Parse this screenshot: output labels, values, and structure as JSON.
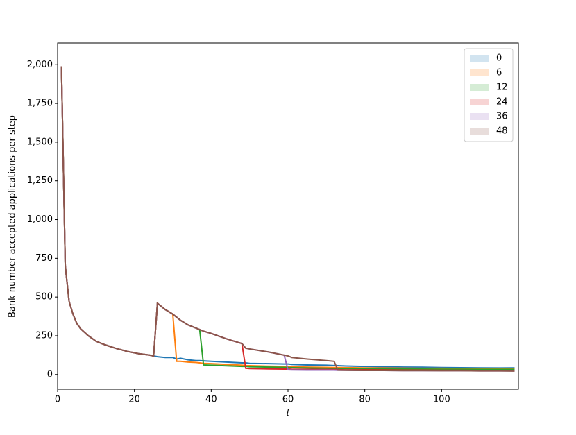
{
  "chart_data": {
    "type": "line",
    "x_label": "t",
    "y_label": "Bank number accepted applications per step",
    "x": [
      1,
      2,
      3,
      4,
      5,
      6,
      8,
      10,
      12,
      15,
      18,
      21,
      24,
      25,
      26,
      28,
      30,
      31,
      32,
      34,
      36,
      37,
      38,
      40,
      44,
      48,
      49,
      50,
      55,
      59,
      60,
      61,
      65,
      70,
      72,
      73,
      75,
      80,
      85,
      90,
      95,
      100,
      105,
      110,
      115,
      119
    ],
    "series": [
      {
        "name": "0",
        "color": "#1f77b4",
        "values": [
          1990,
          700,
          470,
          390,
          330,
          295,
          250,
          215,
          195,
          170,
          150,
          135,
          125,
          120,
          115,
          110,
          110,
          100,
          105,
          95,
          90,
          90,
          88,
          85,
          80,
          75,
          75,
          72,
          70,
          68,
          68,
          65,
          62,
          60,
          58,
          57,
          55,
          52,
          50,
          48,
          47,
          45,
          44,
          43,
          42,
          43
        ]
      },
      {
        "name": "6",
        "color": "#ff7f0e",
        "values": [
          1990,
          700,
          470,
          390,
          330,
          295,
          250,
          215,
          195,
          170,
          150,
          135,
          125,
          120,
          460,
          420,
          390,
          85,
          85,
          80,
          78,
          75,
          72,
          70,
          65,
          60,
          58,
          57,
          54,
          52,
          52,
          50,
          48,
          46,
          45,
          45,
          44,
          43,
          42,
          41,
          40,
          40,
          39,
          38,
          38,
          38
        ]
      },
      {
        "name": "12",
        "color": "#2ca02c",
        "values": [
          1990,
          700,
          470,
          390,
          330,
          295,
          250,
          215,
          195,
          170,
          150,
          135,
          125,
          120,
          460,
          420,
          390,
          370,
          350,
          320,
          300,
          290,
          62,
          60,
          56,
          52,
          52,
          50,
          48,
          46,
          45,
          44,
          42,
          40,
          39,
          39,
          38,
          37,
          36,
          35,
          35,
          34,
          34,
          33,
          33,
          33
        ]
      },
      {
        "name": "24",
        "color": "#d62728",
        "values": [
          1990,
          700,
          470,
          390,
          330,
          295,
          250,
          215,
          195,
          170,
          150,
          135,
          125,
          120,
          460,
          420,
          390,
          370,
          350,
          320,
          300,
          290,
          280,
          265,
          230,
          200,
          40,
          38,
          36,
          35,
          35,
          34,
          33,
          32,
          32,
          31,
          30,
          30,
          29,
          28,
          28,
          27,
          27,
          26,
          26,
          26
        ]
      },
      {
        "name": "36",
        "color": "#9467bd",
        "values": [
          1990,
          700,
          470,
          390,
          330,
          295,
          250,
          215,
          195,
          170,
          150,
          135,
          125,
          120,
          460,
          420,
          390,
          370,
          350,
          320,
          300,
          290,
          280,
          265,
          230,
          200,
          170,
          165,
          145,
          125,
          30,
          29,
          28,
          28,
          28,
          27,
          27,
          26,
          26,
          25,
          25,
          24,
          24,
          23,
          23,
          23
        ]
      },
      {
        "name": "48",
        "color": "#8c564b",
        "values": [
          1990,
          700,
          470,
          390,
          330,
          295,
          250,
          215,
          195,
          170,
          150,
          135,
          125,
          120,
          460,
          420,
          390,
          370,
          350,
          320,
          300,
          290,
          280,
          265,
          230,
          200,
          170,
          165,
          145,
          125,
          120,
          110,
          100,
          90,
          85,
          28,
          27,
          26,
          26,
          25,
          25,
          24,
          24,
          23,
          23,
          22
        ]
      }
    ],
    "xlim": [
      0,
      120
    ],
    "ylim": [
      -95,
      2140
    ],
    "xticks": [
      0,
      20,
      40,
      60,
      80,
      100
    ],
    "yticks": [
      0,
      250,
      500,
      750,
      {
        "value": 1000,
        "label": "1,000"
      },
      {
        "value": 1250,
        "label": "1,250"
      },
      {
        "value": 1500,
        "label": "1,500"
      },
      {
        "value": 1750,
        "label": "1,750"
      },
      {
        "value": 2000,
        "label": "2,000"
      }
    ],
    "legend": "upper right",
    "grid": false
  }
}
